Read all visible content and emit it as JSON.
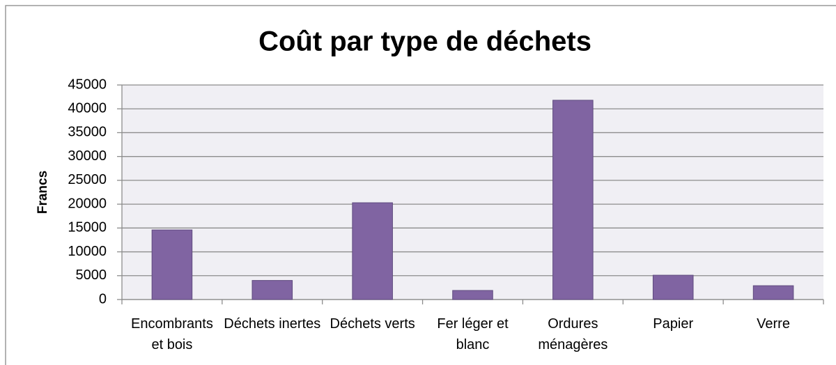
{
  "chart_data": {
    "type": "bar",
    "title": "Coût par type de déchets",
    "y_label": "Francs",
    "categories": [
      "Encombrants et bois",
      "Déchets inertes",
      "Déchets verts",
      "Fer léger et blanc",
      "Ordures ménagères",
      "Papier",
      "Verre"
    ],
    "values": [
      14600,
      4000,
      20300,
      1900,
      41800,
      5100,
      2900
    ],
    "color": "#8064a2",
    "ylim": [
      0,
      45000
    ],
    "yticks": [
      0,
      5000,
      10000,
      15000,
      20000,
      25000,
      30000,
      35000,
      40000,
      45000
    ],
    "grid": true
  }
}
